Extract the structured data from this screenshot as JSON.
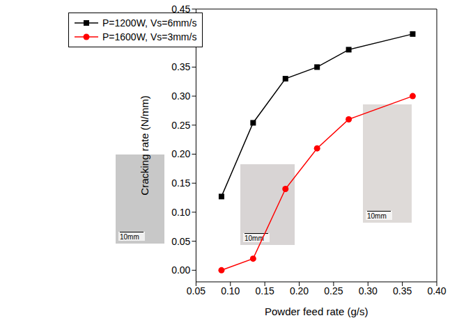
{
  "chart_data": {
    "type": "line",
    "x_label": "Powder feed rate (g/s)",
    "y_label": "Cracking rate (N/mm)",
    "x": [
      0.087,
      0.133,
      0.18,
      0.226,
      0.272,
      0.365
    ],
    "series": [
      {
        "name": "P=1200W, Vs=6mm/s",
        "color": "#000000",
        "marker": "square",
        "values": [
          0.127,
          0.254,
          0.33,
          0.35,
          0.38,
          0.407
        ]
      },
      {
        "name": "P=1600W, Vs=3mm/s",
        "color": "#ff0000",
        "marker": "circle",
        "values": [
          0.0,
          0.02,
          0.14,
          0.21,
          0.26,
          0.3
        ]
      }
    ],
    "xlim": [
      0.05,
      0.4
    ],
    "xticks": [
      0.05,
      {
        "value": 0.1,
        "label": "0.10"
      },
      0.15,
      {
        "value": 0.2,
        "label": "0.20"
      },
      0.25,
      {
        "value": 0.3,
        "label": "0.30"
      },
      0.35,
      {
        "value": 0.4,
        "label": "0.40"
      }
    ],
    "ylim": [
      -0.02,
      0.45
    ],
    "yticks": [
      {
        "value": 0,
        "label": "0.00"
      },
      0.05,
      {
        "value": 0.1,
        "label": "0.10"
      },
      0.15,
      {
        "value": 0.2,
        "label": "0.20"
      },
      0.25,
      {
        "value": 0.3,
        "label": "0.30"
      },
      0.35,
      {
        "value": 0.4,
        "label": "0.40"
      },
      0.45
    ],
    "grid": false,
    "legend": "top-left",
    "annotations": [
      "10mm",
      "10mm",
      "10mm"
    ]
  }
}
